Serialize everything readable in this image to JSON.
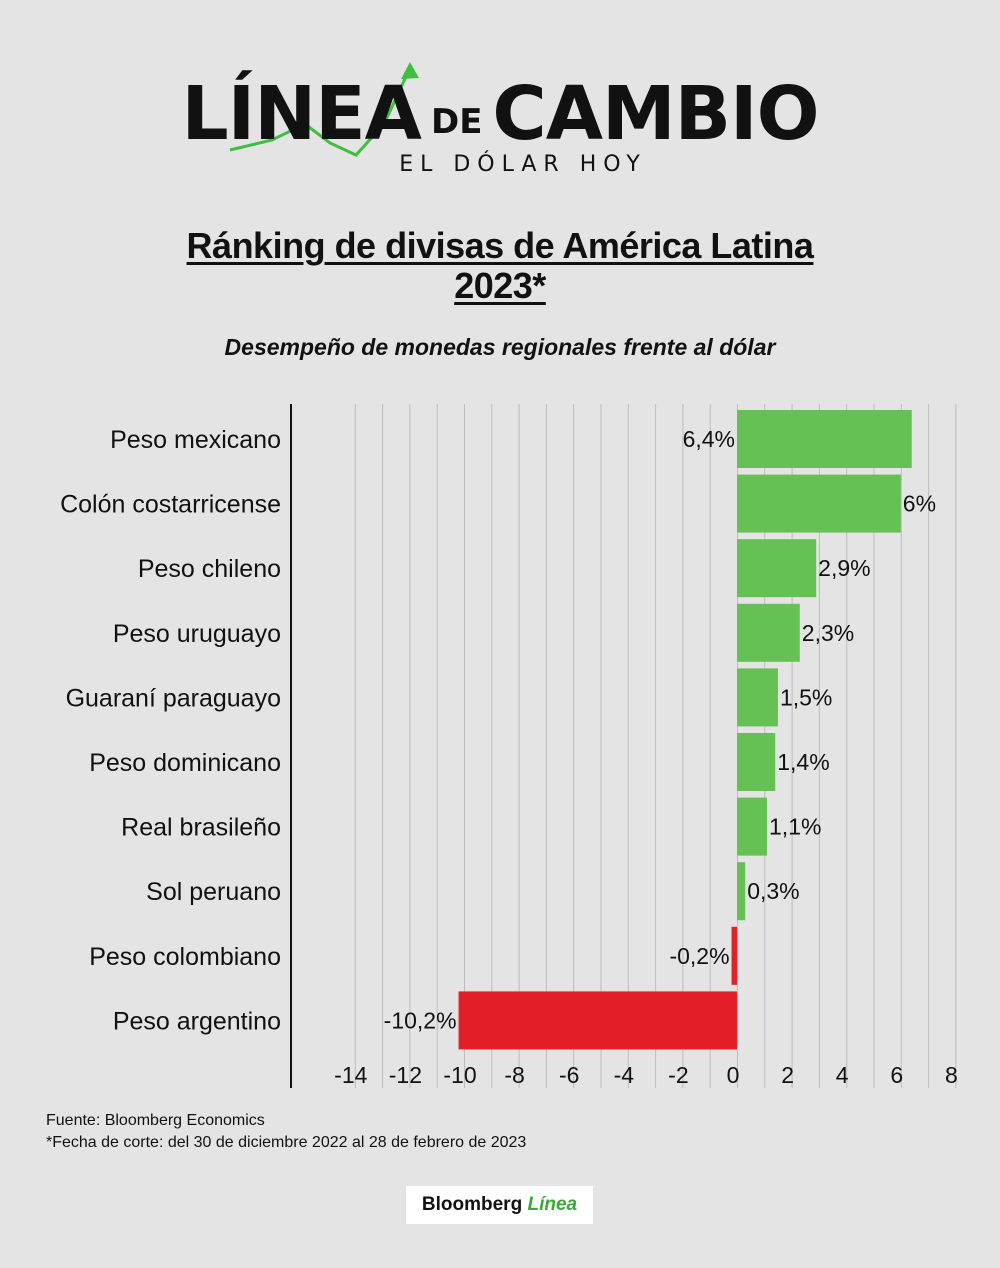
{
  "logo": {
    "word1": "LÍNEA",
    "word2": "DE",
    "word3": "CAMBIO",
    "tagline": "EL DÓLAR HOY",
    "accent_color": "#3fbf3f"
  },
  "header": {
    "title": "Ránking de divisas de América Latina 2023*",
    "subtitle": "Desempeño de monedas regionales frente al dólar"
  },
  "chart_data": {
    "type": "bar",
    "orientation": "horizontal",
    "categories": [
      "Peso mexicano",
      "Colón costarricense",
      "Peso chileno",
      "Peso uruguayo",
      "Guaraní paraguayo",
      "Peso dominicano",
      "Real brasileño",
      "Sol peruano",
      "Peso colombiano",
      "Peso argentino"
    ],
    "values": [
      6.4,
      6,
      2.9,
      2.3,
      1.5,
      1.4,
      1.1,
      0.3,
      -0.2,
      -10.2
    ],
    "value_labels": [
      "6,4%",
      "6%",
      "2,9%",
      "2,3%",
      "1,5%",
      "1,4%",
      "1,1%",
      "0,3%",
      "-0,2%",
      "-10,2%"
    ],
    "xlim": [
      -14,
      8
    ],
    "xticks": [
      -14,
      -12,
      -10,
      -8,
      -6,
      -4,
      -2,
      0,
      2,
      4,
      6,
      8
    ],
    "grid": true,
    "positive_color": "#66c155",
    "negative_color": "#e21f26"
  },
  "footer": {
    "source": "Fuente: Bloomberg Economics",
    "note": "*Fecha de corte: del 30 de diciembre 2022 al 28 de febrero de 2023",
    "brand_black": "Bloomberg",
    "brand_green": "Línea"
  }
}
